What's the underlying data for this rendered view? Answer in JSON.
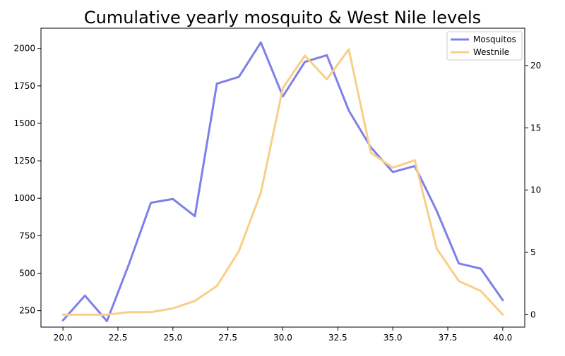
{
  "chart_data": {
    "type": "line",
    "title": "Cumulative yearly mosquito & West Nile levels",
    "x": [
      20,
      21,
      22,
      23,
      24,
      25,
      26,
      27,
      28,
      29,
      30,
      31,
      32,
      33,
      34,
      35,
      36,
      37,
      38,
      39,
      40
    ],
    "xlim": [
      19.0,
      41.0
    ],
    "x_ticks": [
      "20.0",
      "22.5",
      "25.0",
      "27.5",
      "30.0",
      "32.5",
      "35.0",
      "37.5",
      "40.0"
    ],
    "series": [
      {
        "name": "Mosquitos",
        "axis": "left",
        "color": "#7d80e8",
        "values": [
          185,
          350,
          180,
          560,
          970,
          995,
          880,
          1765,
          1810,
          2040,
          1680,
          1910,
          1955,
          1585,
          1340,
          1175,
          1215,
          915,
          565,
          530,
          320
        ]
      },
      {
        "name": "Westnile",
        "axis": "right",
        "color": "#f8cf87",
        "values": [
          0,
          0,
          0,
          0.2,
          0.2,
          0.5,
          1.1,
          2.3,
          5.1,
          9.8,
          18.2,
          20.8,
          18.9,
          21.3,
          13.0,
          11.8,
          12.4,
          5.3,
          2.7,
          1.9,
          0
        ]
      }
    ],
    "y_left": {
      "ylim": [
        140,
        2135
      ],
      "ticks": [
        "250",
        "500",
        "750",
        "1000",
        "1250",
        "1500",
        "1750",
        "2000"
      ]
    },
    "y_right": {
      "ylim": [
        -1.0,
        23.0
      ],
      "ticks": [
        "0",
        "5",
        "10",
        "15",
        "20"
      ]
    },
    "legend": {
      "placement": "top-right",
      "entries": [
        "Mosquitos",
        "Westnile"
      ]
    },
    "grid": false
  }
}
